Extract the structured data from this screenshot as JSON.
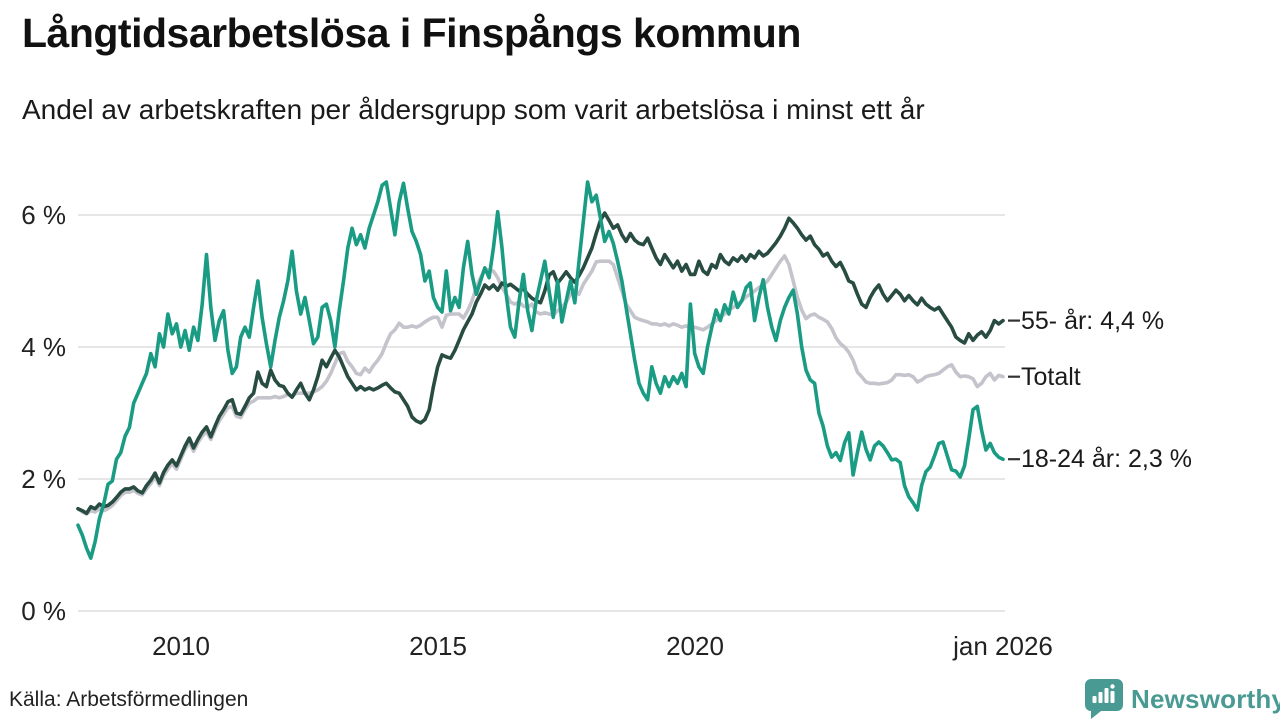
{
  "header": {
    "title": "Långtidsarbetslösa i Finspångs kommun",
    "subtitle": "Andel av arbetskraften per åldersgrupp som varit arbetslösa i minst ett år"
  },
  "footer": {
    "source": "Källa: Arbetsförmedlingen",
    "brand": "Newsworthy"
  },
  "colors": {
    "teal_line": "#1a9b84",
    "dark_line": "#284c41",
    "gray_line": "#c5c3cb",
    "grid": "#dddddd",
    "tick_dash": "#333333",
    "brand_teal": "#489a92"
  },
  "chart_data": {
    "type": "line",
    "title": "Långtidsarbetslösa i Finspångs kommun",
    "subtitle": "Andel av arbetskraften per åldersgrupp som varit arbetslösa i minst ett år",
    "xlabel": "",
    "ylabel": "",
    "unit": "% av arbetskraften",
    "x_start_year": 2008,
    "x_step_months": 1,
    "xlim": [
      2008.0,
      2026.0
    ],
    "ylim": [
      0,
      6.8
    ],
    "grid": true,
    "legend_position": "right-end-labels",
    "x_ticks": [
      {
        "t": 2010.0,
        "label": "2010"
      },
      {
        "t": 2015.0,
        "label": "2015"
      },
      {
        "t": 2020.0,
        "label": "2020"
      },
      {
        "t": 2026.0,
        "label": "jan 2026"
      }
    ],
    "y_ticks": [
      {
        "v": 0,
        "label": "0 %"
      },
      {
        "v": 2,
        "label": "2 %"
      },
      {
        "v": 4,
        "label": "4 %"
      },
      {
        "v": 6,
        "label": "6 %"
      }
    ],
    "series": [
      {
        "id": "totalt",
        "name": "Totalt",
        "end_label": "Totalt",
        "color": "#c5c3cb",
        "values": [
          1.55,
          1.5,
          1.47,
          1.52,
          1.5,
          1.55,
          1.52,
          1.55,
          1.6,
          1.67,
          1.75,
          1.8,
          1.8,
          1.83,
          1.78,
          1.76,
          1.85,
          1.93,
          2.03,
          1.9,
          2.05,
          2.15,
          2.23,
          2.15,
          2.3,
          2.45,
          2.55,
          2.42,
          2.55,
          2.65,
          2.72,
          2.6,
          2.75,
          2.88,
          2.98,
          3.08,
          3.1,
          2.95,
          2.93,
          3.05,
          3.15,
          3.18,
          3.23,
          3.23,
          3.23,
          3.23,
          3.25,
          3.23,
          3.25,
          3.28,
          3.25,
          3.3,
          3.3,
          3.3,
          3.3,
          3.32,
          3.35,
          3.4,
          3.48,
          3.6,
          3.75,
          3.9,
          3.92,
          3.78,
          3.7,
          3.6,
          3.58,
          3.68,
          3.62,
          3.72,
          3.8,
          3.9,
          4.06,
          4.2,
          4.26,
          4.36,
          4.3,
          4.3,
          4.32,
          4.3,
          4.33,
          4.38,
          4.42,
          4.45,
          4.45,
          4.3,
          4.48,
          4.5,
          4.5,
          4.5,
          4.44,
          4.55,
          4.7,
          4.9,
          5.05,
          5.17,
          5.17,
          5.15,
          5.05,
          4.9,
          4.8,
          4.68,
          4.65,
          4.68,
          4.62,
          4.6,
          4.65,
          4.53,
          4.5,
          4.52,
          4.5,
          4.48,
          4.55,
          4.6,
          4.68,
          4.8,
          4.86,
          4.8,
          4.95,
          5.05,
          5.15,
          5.29,
          5.3,
          5.3,
          5.3,
          5.25,
          5.05,
          4.85,
          4.65,
          4.55,
          4.45,
          4.42,
          4.4,
          4.38,
          4.35,
          4.35,
          4.33,
          4.35,
          4.32,
          4.35,
          4.33,
          4.3,
          4.32,
          4.3,
          4.3,
          4.28,
          4.26,
          4.3,
          4.35,
          4.4,
          4.45,
          4.5,
          4.56,
          4.6,
          4.65,
          4.7,
          4.76,
          4.8,
          4.85,
          4.9,
          4.94,
          5.0,
          5.1,
          5.2,
          5.3,
          5.38,
          5.25,
          5.0,
          4.75,
          4.56,
          4.43,
          4.48,
          4.5,
          4.45,
          4.42,
          4.38,
          4.28,
          4.14,
          4.05,
          4.0,
          3.92,
          3.8,
          3.62,
          3.55,
          3.47,
          3.45,
          3.45,
          3.44,
          3.45,
          3.46,
          3.5,
          3.58,
          3.58,
          3.57,
          3.58,
          3.55,
          3.47,
          3.5,
          3.55,
          3.57,
          3.58,
          3.6,
          3.65,
          3.7,
          3.73,
          3.62,
          3.55,
          3.56,
          3.55,
          3.52,
          3.4,
          3.45,
          3.55,
          3.6,
          3.5,
          3.57,
          3.55
        ]
      },
      {
        "id": "55-ar",
        "name": "55- år",
        "end_label": "55- år: 4,4 %",
        "end_value": "4,4 %",
        "color": "#284c41",
        "values": [
          1.55,
          1.52,
          1.48,
          1.58,
          1.55,
          1.62,
          1.58,
          1.6,
          1.65,
          1.72,
          1.8,
          1.85,
          1.85,
          1.88,
          1.82,
          1.79,
          1.9,
          1.98,
          2.09,
          1.94,
          2.1,
          2.21,
          2.29,
          2.2,
          2.35,
          2.5,
          2.62,
          2.47,
          2.6,
          2.71,
          2.79,
          2.64,
          2.8,
          2.95,
          3.05,
          3.17,
          3.2,
          3.0,
          2.98,
          3.1,
          3.23,
          3.3,
          3.62,
          3.45,
          3.4,
          3.65,
          3.5,
          3.42,
          3.4,
          3.3,
          3.24,
          3.35,
          3.45,
          3.3,
          3.2,
          3.35,
          3.55,
          3.8,
          3.7,
          3.83,
          3.95,
          3.85,
          3.7,
          3.55,
          3.45,
          3.35,
          3.4,
          3.35,
          3.38,
          3.35,
          3.38,
          3.42,
          3.45,
          3.38,
          3.32,
          3.3,
          3.2,
          3.1,
          2.94,
          2.88,
          2.85,
          2.9,
          3.05,
          3.4,
          3.7,
          3.88,
          3.85,
          3.83,
          3.95,
          4.1,
          4.26,
          4.38,
          4.5,
          4.68,
          4.8,
          4.94,
          4.88,
          4.94,
          4.86,
          4.97,
          4.92,
          4.95,
          4.9,
          4.85,
          4.88,
          4.8,
          4.74,
          4.7,
          4.67,
          4.85,
          5.09,
          5.14,
          4.97,
          5.05,
          5.14,
          5.05,
          4.98,
          5.08,
          5.2,
          5.35,
          5.5,
          5.72,
          5.92,
          6.03,
          5.92,
          5.8,
          5.85,
          5.7,
          5.6,
          5.72,
          5.62,
          5.57,
          5.55,
          5.65,
          5.5,
          5.35,
          5.25,
          5.4,
          5.3,
          5.2,
          5.3,
          5.15,
          5.25,
          5.1,
          5.1,
          5.3,
          5.15,
          5.1,
          5.25,
          5.2,
          5.4,
          5.3,
          5.25,
          5.35,
          5.3,
          5.38,
          5.3,
          5.4,
          5.35,
          5.45,
          5.38,
          5.42,
          5.5,
          5.58,
          5.68,
          5.8,
          5.95,
          5.88,
          5.8,
          5.7,
          5.62,
          5.68,
          5.55,
          5.48,
          5.38,
          5.42,
          5.3,
          5.22,
          5.28,
          5.15,
          5.0,
          4.97,
          4.8,
          4.65,
          4.6,
          4.75,
          4.86,
          4.94,
          4.8,
          4.7,
          4.78,
          4.86,
          4.8,
          4.7,
          4.78,
          4.7,
          4.64,
          4.74,
          4.65,
          4.6,
          4.56,
          4.6,
          4.5,
          4.4,
          4.3,
          4.15,
          4.1,
          4.06,
          4.2,
          4.1,
          4.18,
          4.23,
          4.15,
          4.25,
          4.4,
          4.35,
          4.4
        ]
      },
      {
        "id": "18-24-ar",
        "name": "18-24 år",
        "end_label": "18-24 år: 2,3 %",
        "end_value": "2,3 %",
        "color": "#1a9b84",
        "values": [
          1.3,
          1.15,
          0.95,
          0.8,
          1.05,
          1.4,
          1.62,
          1.92,
          1.97,
          2.3,
          2.4,
          2.65,
          2.78,
          3.15,
          3.3,
          3.45,
          3.6,
          3.9,
          3.7,
          4.2,
          4.0,
          4.5,
          4.2,
          4.35,
          4.0,
          4.25,
          3.95,
          4.3,
          4.1,
          4.65,
          5.4,
          4.6,
          4.1,
          4.4,
          4.55,
          3.95,
          3.6,
          3.7,
          4.15,
          4.3,
          4.15,
          4.6,
          5.0,
          4.45,
          4.05,
          3.7,
          4.1,
          4.45,
          4.7,
          5.0,
          5.45,
          4.85,
          4.5,
          4.75,
          4.4,
          4.05,
          4.15,
          4.6,
          4.65,
          4.4,
          4.0,
          4.55,
          5.0,
          5.5,
          5.8,
          5.55,
          5.7,
          5.5,
          5.8,
          6.0,
          6.2,
          6.45,
          6.5,
          6.1,
          5.7,
          6.2,
          6.48,
          6.1,
          5.75,
          5.6,
          5.4,
          5.0,
          5.15,
          4.75,
          4.6,
          4.53,
          5.15,
          4.55,
          4.75,
          4.6,
          5.2,
          5.6,
          5.1,
          4.8,
          5.0,
          5.2,
          5.05,
          5.5,
          6.05,
          5.5,
          4.8,
          4.3,
          4.15,
          4.7,
          5.1,
          4.55,
          4.25,
          4.7,
          5.0,
          5.3,
          4.85,
          4.45,
          5.0,
          4.38,
          4.7,
          5.0,
          4.67,
          5.3,
          5.9,
          6.5,
          6.2,
          6.3,
          5.95,
          5.6,
          5.75,
          5.57,
          5.3,
          5.0,
          4.6,
          4.2,
          3.8,
          3.45,
          3.3,
          3.2,
          3.7,
          3.45,
          3.3,
          3.55,
          3.4,
          3.55,
          3.45,
          3.6,
          3.4,
          4.65,
          3.9,
          3.7,
          3.6,
          4.0,
          4.3,
          4.56,
          4.4,
          4.64,
          4.5,
          4.83,
          4.6,
          4.7,
          4.9,
          4.97,
          4.4,
          4.75,
          5.02,
          4.6,
          4.3,
          4.1,
          4.4,
          4.6,
          4.75,
          4.86,
          4.5,
          4.0,
          3.65,
          3.5,
          3.45,
          3.0,
          2.8,
          2.5,
          2.33,
          2.4,
          2.28,
          2.55,
          2.7,
          2.06,
          2.4,
          2.71,
          2.45,
          2.29,
          2.5,
          2.56,
          2.5,
          2.4,
          2.29,
          2.3,
          2.25,
          1.9,
          1.73,
          1.64,
          1.53,
          1.9,
          2.11,
          2.18,
          2.35,
          2.54,
          2.56,
          2.35,
          2.14,
          2.12,
          2.03,
          2.2,
          2.6,
          3.05,
          3.1,
          2.74,
          2.44,
          2.54,
          2.4,
          2.33,
          2.3
        ]
      }
    ]
  }
}
